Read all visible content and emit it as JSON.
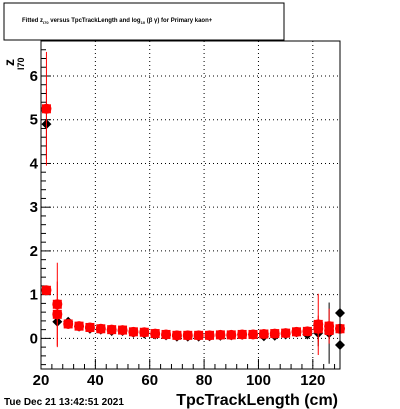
{
  "title": {
    "main": "Fitted  z",
    "z_subscript": "I70",
    "versus": "  versus TpcTrackLength and log",
    "log_subscript": "10",
    "log_arg": " (β γ)",
    "tail": " for Primary kaon+"
  },
  "timestamp": "Tue Dec 21 13:42:51 2021",
  "colors": {
    "series_black": "#000000",
    "series_red": "#ff0000",
    "frame": "#000000",
    "grid": "#000000"
  },
  "chart_data": {
    "type": "scatter",
    "xlabel": "TpcTrackLength (cm)",
    "ylabel": "z",
    "ylabel_subscript": "I70",
    "xlim": [
      20,
      130
    ],
    "ylim": [
      -0.7,
      6.8
    ],
    "grid": true,
    "x_ticks": [
      20,
      40,
      60,
      80,
      100,
      120
    ],
    "x_tick_labels": [
      "20",
      "40",
      "60",
      "80",
      "100",
      "120"
    ],
    "y_ticks": [
      0,
      1,
      2,
      3,
      4,
      5,
      6
    ],
    "y_tick_labels": [
      "0",
      "1",
      "2",
      "3",
      "4",
      "5",
      "6"
    ],
    "series": [
      {
        "marker": "diamond",
        "color": "black",
        "points": [
          {
            "x": 22,
            "y": 4.9,
            "yerr": 0.8
          },
          {
            "x": 26,
            "y": 0.38,
            "yerr": 0.1
          },
          {
            "x": 30,
            "y": 0.38,
            "yerr": 0.05
          },
          {
            "x": 34,
            "y": 0.27,
            "yerr": 0.04
          },
          {
            "x": 38,
            "y": 0.22,
            "yerr": 0.03
          },
          {
            "x": 42,
            "y": 0.2,
            "yerr": 0.03
          },
          {
            "x": 46,
            "y": 0.17,
            "yerr": 0.02
          },
          {
            "x": 50,
            "y": 0.17,
            "yerr": 0.02
          },
          {
            "x": 54,
            "y": 0.13,
            "yerr": 0.02
          },
          {
            "x": 58,
            "y": 0.11,
            "yerr": 0.02
          },
          {
            "x": 62,
            "y": 0.09,
            "yerr": 0.02
          },
          {
            "x": 66,
            "y": 0.07,
            "yerr": 0.02
          },
          {
            "x": 70,
            "y": 0.04,
            "yerr": 0.02
          },
          {
            "x": 74,
            "y": 0.04,
            "yerr": 0.02
          },
          {
            "x": 78,
            "y": 0.04,
            "yerr": 0.02
          },
          {
            "x": 82,
            "y": 0.05,
            "yerr": 0.02
          },
          {
            "x": 86,
            "y": 0.06,
            "yerr": 0.02
          },
          {
            "x": 90,
            "y": 0.07,
            "yerr": 0.02
          },
          {
            "x": 94,
            "y": 0.08,
            "yerr": 0.02
          },
          {
            "x": 98,
            "y": 0.09,
            "yerr": 0.02
          },
          {
            "x": 102,
            "y": 0.05,
            "yerr": 0.03
          },
          {
            "x": 106,
            "y": 0.06,
            "yerr": 0.03
          },
          {
            "x": 110,
            "y": 0.09,
            "yerr": 0.04
          },
          {
            "x": 114,
            "y": 0.14,
            "yerr": 0.05
          },
          {
            "x": 118,
            "y": 0.09,
            "yerr": 0.07
          },
          {
            "x": 122,
            "y": 0.12,
            "yerr": 0.3
          },
          {
            "x": 126,
            "y": 0.12,
            "yerr": 0.7
          },
          {
            "x": 130,
            "y": -0.15,
            "yerr": 0.3
          },
          {
            "x": 130,
            "y": 0.58,
            "yerr": 1.2
          }
        ]
      },
      {
        "marker": "square-circle",
        "color": "red",
        "points": [
          {
            "x": 22,
            "y": 5.25,
            "yerr": 1.3
          },
          {
            "x": 22,
            "y": 1.1,
            "yerr": 0.08
          },
          {
            "x": 26,
            "y": 0.55,
            "yerr": 0.75
          },
          {
            "x": 26,
            "y": 0.78,
            "yerr": 0.95
          },
          {
            "x": 30,
            "y": 0.33,
            "yerr": 0.05
          },
          {
            "x": 34,
            "y": 0.28,
            "yerr": 0.04
          },
          {
            "x": 38,
            "y": 0.25,
            "yerr": 0.03
          },
          {
            "x": 42,
            "y": 0.22,
            "yerr": 0.03
          },
          {
            "x": 46,
            "y": 0.2,
            "yerr": 0.02
          },
          {
            "x": 50,
            "y": 0.19,
            "yerr": 0.02
          },
          {
            "x": 54,
            "y": 0.15,
            "yerr": 0.02
          },
          {
            "x": 58,
            "y": 0.14,
            "yerr": 0.02
          },
          {
            "x": 62,
            "y": 0.11,
            "yerr": 0.02
          },
          {
            "x": 66,
            "y": 0.09,
            "yerr": 0.02
          },
          {
            "x": 70,
            "y": 0.07,
            "yerr": 0.02
          },
          {
            "x": 74,
            "y": 0.07,
            "yerr": 0.02
          },
          {
            "x": 78,
            "y": 0.07,
            "yerr": 0.02
          },
          {
            "x": 82,
            "y": 0.07,
            "yerr": 0.02
          },
          {
            "x": 86,
            "y": 0.08,
            "yerr": 0.02
          },
          {
            "x": 90,
            "y": 0.08,
            "yerr": 0.02
          },
          {
            "x": 94,
            "y": 0.09,
            "yerr": 0.02
          },
          {
            "x": 98,
            "y": 0.09,
            "yerr": 0.02
          },
          {
            "x": 102,
            "y": 0.1,
            "yerr": 0.03
          },
          {
            "x": 106,
            "y": 0.11,
            "yerr": 0.03
          },
          {
            "x": 110,
            "y": 0.12,
            "yerr": 0.04
          },
          {
            "x": 114,
            "y": 0.15,
            "yerr": 0.05
          },
          {
            "x": 118,
            "y": 0.16,
            "yerr": 0.06
          },
          {
            "x": 122,
            "y": 0.32,
            "yerr": 0.7
          },
          {
            "x": 122,
            "y": 0.22,
            "yerr": 0.3
          },
          {
            "x": 126,
            "y": 0.28,
            "yerr": 0.4
          },
          {
            "x": 126,
            "y": 0.18,
            "yerr": 0.2
          },
          {
            "x": 130,
            "y": 0.22,
            "yerr": 0.05
          }
        ]
      }
    ]
  }
}
